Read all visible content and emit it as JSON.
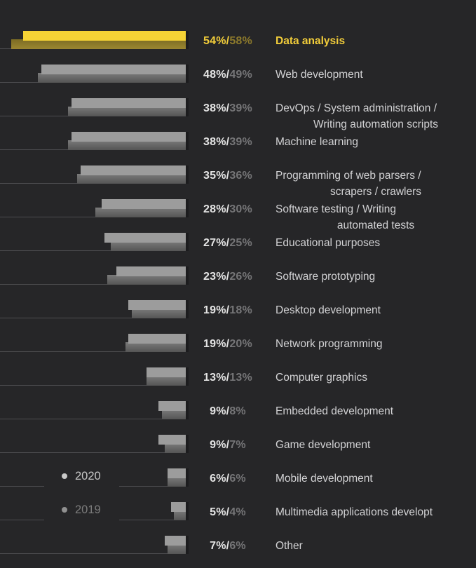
{
  "chart_data": {
    "type": "bar",
    "orientation": "horizontal",
    "unit": "%",
    "layout_hints": {
      "bars_right_aligned": true,
      "value_labels": "centered column between bars and category labels, format 2020%/2019%",
      "legend_position": "inline lower-left, rows 2020 and 2019",
      "grid": "thin baseline line from left edge to start of each 2019 bar",
      "x_range_pct": [
        0,
        60
      ]
    },
    "series": [
      {
        "name": "2020",
        "values": [
          54,
          48,
          38,
          38,
          35,
          28,
          27,
          23,
          19,
          19,
          13,
          9,
          9,
          6,
          5,
          7
        ]
      },
      {
        "name": "2019",
        "values": [
          58,
          49,
          39,
          39,
          36,
          30,
          25,
          26,
          18,
          20,
          13,
          8,
          7,
          6,
          4,
          6
        ]
      }
    ],
    "categories": [
      "Data analysis",
      "Web development",
      "DevOps / System administration / Writing automation scripts",
      "Machine learning",
      "Programming of web parsers / scrapers / crawlers",
      "Software testing / Writing automated tests",
      "Educational purposes",
      "Software prototyping",
      "Desktop development",
      "Network programming",
      "Computer graphics",
      "Embedded development",
      "Game development",
      "Mobile development",
      "Multimedia applications developt",
      "Other"
    ],
    "rows": [
      {
        "label_lines": [
          "Data analysis"
        ],
        "pct_2020_text": "54%/",
        "pct_2019_text": "58%",
        "v2020": 54,
        "v2019": 58,
        "highlight": true
      },
      {
        "label_lines": [
          "Web development"
        ],
        "pct_2020_text": "48%/",
        "pct_2019_text": "49%",
        "v2020": 48,
        "v2019": 49,
        "highlight": false
      },
      {
        "label_lines": [
          "DevOps / System administration /",
          "Writing automation scripts"
        ],
        "pct_2020_text": "38%/",
        "pct_2019_text": "39%",
        "v2020": 38,
        "v2019": 39,
        "highlight": false
      },
      {
        "label_lines": [
          "Machine learning"
        ],
        "pct_2020_text": "38%/",
        "pct_2019_text": "39%",
        "v2020": 38,
        "v2019": 39,
        "highlight": false
      },
      {
        "label_lines": [
          "Programming of web parsers /",
          "scrapers / crawlers"
        ],
        "pct_2020_text": "35%/",
        "pct_2019_text": "36%",
        "v2020": 35,
        "v2019": 36,
        "highlight": false
      },
      {
        "label_lines": [
          "Software testing / Writing",
          "automated tests"
        ],
        "pct_2020_text": "28%/",
        "pct_2019_text": "30%",
        "v2020": 28,
        "v2019": 30,
        "highlight": false
      },
      {
        "label_lines": [
          "Educational purposes"
        ],
        "pct_2020_text": "27%/",
        "pct_2019_text": "25%",
        "v2020": 27,
        "v2019": 25,
        "highlight": false
      },
      {
        "label_lines": [
          "Software prototyping"
        ],
        "pct_2020_text": "23%/",
        "pct_2019_text": "26%",
        "v2020": 23,
        "v2019": 26,
        "highlight": false
      },
      {
        "label_lines": [
          "Desktop development"
        ],
        "pct_2020_text": "19%/",
        "pct_2019_text": "18%",
        "v2020": 19,
        "v2019": 18,
        "highlight": false
      },
      {
        "label_lines": [
          "Network programming"
        ],
        "pct_2020_text": "19%/",
        "pct_2019_text": "20%",
        "v2020": 19,
        "v2019": 20,
        "highlight": false
      },
      {
        "label_lines": [
          "Computer graphics"
        ],
        "pct_2020_text": "13%/",
        "pct_2019_text": "13%",
        "v2020": 13,
        "v2019": 13,
        "highlight": false
      },
      {
        "label_lines": [
          "Embedded development"
        ],
        "pct_2020_text": "9%/",
        "pct_2019_text": "8%",
        "v2020": 9,
        "v2019": 8,
        "highlight": false
      },
      {
        "label_lines": [
          "Game development"
        ],
        "pct_2020_text": "9%/",
        "pct_2019_text": "7%",
        "v2020": 9,
        "v2019": 7,
        "highlight": false
      },
      {
        "label_lines": [
          "Mobile development"
        ],
        "pct_2020_text": "6%/",
        "pct_2019_text": "6%",
        "v2020": 6,
        "v2019": 6,
        "highlight": false
      },
      {
        "label_lines": [
          "Multimedia applications developt"
        ],
        "pct_2020_text": "5%/",
        "pct_2019_text": "4%",
        "v2020": 5,
        "v2019": 4,
        "highlight": false
      },
      {
        "label_lines": [
          "Other"
        ],
        "pct_2020_text": "7%/",
        "pct_2019_text": "6%",
        "v2020": 7,
        "v2019": 6,
        "highlight": false
      }
    ]
  },
  "legend": {
    "items": [
      {
        "label": "2020"
      },
      {
        "label": "2019"
      }
    ]
  },
  "colors": {
    "background": "#262628",
    "bar_2020": "#9c9c9c",
    "bar_2019_top": "#7a7a7a",
    "bar_2019_bottom": "#555555",
    "bar_2020_highlight": "#f5d335",
    "bar_2019_highlight_top": "#7c6c24",
    "bar_2019_highlight_bottom": "#9b8630",
    "pct_2020": "#e4e4e4",
    "pct_2019": "#757577",
    "highlight_text": "#f2cd3a",
    "highlight_dim": "#8d7a2c",
    "label": "#d2d2d4",
    "baseline": "#4d4d50",
    "edge_shadow": "#1c1c1e",
    "legend_2020_text": "#c6c6c6",
    "legend_2020_dot": "#c9c9c9",
    "legend_2019_text": "#7c7c7c",
    "legend_2019_dot": "#909090"
  }
}
